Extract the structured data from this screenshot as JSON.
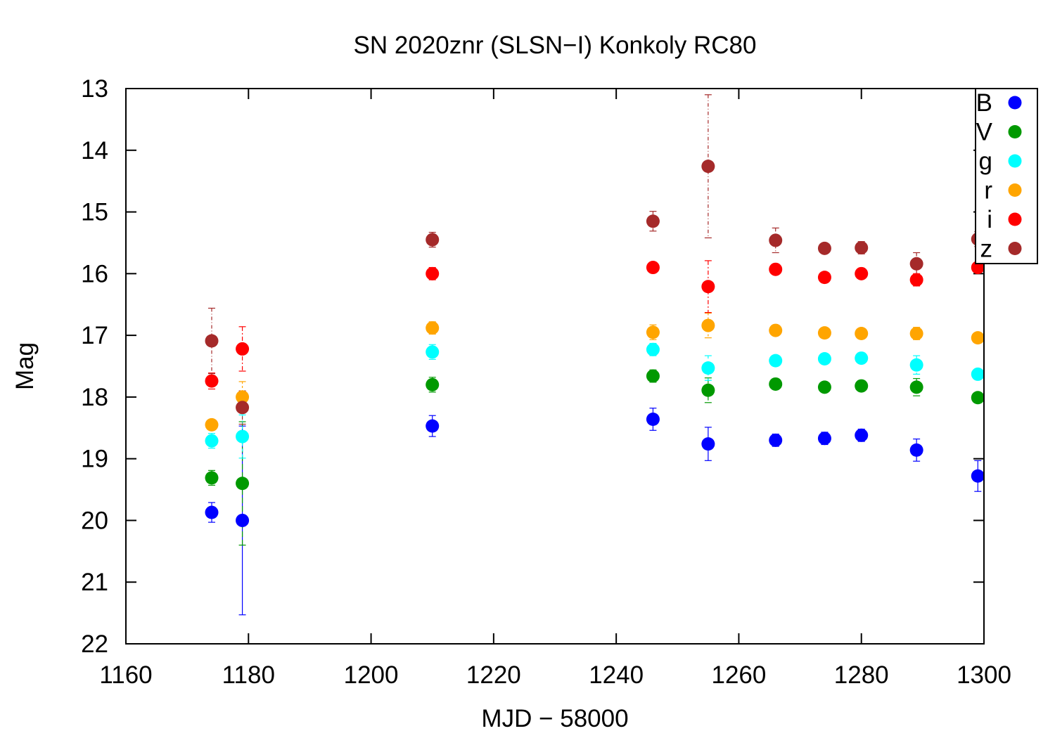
{
  "chart_data": {
    "type": "scatter",
    "title": "SN 2020znr (SLSN−I) Konkoly RC80",
    "xlabel": "MJD − 58000",
    "ylabel": "Mag",
    "xlim": [
      1160,
      1300
    ],
    "ylim": [
      22,
      13
    ],
    "y_inverted": true,
    "x_ticks": [
      1160,
      1180,
      1200,
      1220,
      1240,
      1260,
      1280,
      1300
    ],
    "y_ticks": [
      13,
      14,
      15,
      16,
      17,
      18,
      19,
      20,
      21,
      22
    ],
    "grid": false,
    "legend_position": "top-right",
    "series": [
      {
        "name": "B",
        "color": "#0000ff",
        "x": [
          1174,
          1179,
          1210,
          1246,
          1255,
          1266,
          1274,
          1280,
          1289,
          1299
        ],
        "y": [
          19.87,
          20.0,
          18.47,
          18.36,
          18.76,
          18.7,
          18.67,
          18.62,
          18.86,
          19.28
        ],
        "err": [
          0.16,
          1.53,
          0.17,
          0.18,
          0.27,
          0.1,
          0.1,
          0.1,
          0.18,
          0.25
        ]
      },
      {
        "name": "V",
        "color": "#009900",
        "x": [
          1174,
          1179,
          1210,
          1246,
          1255,
          1266,
          1274,
          1280,
          1289,
          1299
        ],
        "y": [
          19.31,
          19.4,
          17.8,
          17.66,
          17.89,
          17.79,
          17.84,
          17.82,
          17.84,
          18.01
        ],
        "err": [
          0.12,
          1.0,
          0.12,
          0.1,
          0.2,
          0.06,
          0.06,
          0.06,
          0.14,
          0.08
        ]
      },
      {
        "name": "g",
        "color": "#00ffff",
        "x": [
          1174,
          1179,
          1210,
          1246,
          1255,
          1266,
          1274,
          1280,
          1289,
          1299
        ],
        "y": [
          18.71,
          18.64,
          17.27,
          17.23,
          17.53,
          17.41,
          17.38,
          17.37,
          17.48,
          17.63
        ],
        "err": [
          0.12,
          0.35,
          0.12,
          0.1,
          0.2,
          0.05,
          0.05,
          0.05,
          0.15,
          0.08
        ]
      },
      {
        "name": "r",
        "color": "#ffa500",
        "x": [
          1174,
          1179,
          1210,
          1246,
          1255,
          1266,
          1274,
          1280,
          1289,
          1299
        ],
        "y": [
          18.45,
          18.0,
          16.88,
          16.95,
          16.84,
          16.92,
          16.96,
          16.97,
          16.97,
          17.04
        ],
        "err": [
          0.08,
          0.25,
          0.1,
          0.12,
          0.2,
          0.05,
          0.05,
          0.05,
          0.1,
          0.06
        ]
      },
      {
        "name": "i",
        "color": "#ff0000",
        "x": [
          1174,
          1179,
          1210,
          1246,
          1255,
          1266,
          1274,
          1280,
          1289,
          1299
        ],
        "y": [
          17.74,
          17.22,
          16.0,
          15.9,
          16.21,
          15.93,
          16.06,
          16.0,
          16.1,
          15.9
        ],
        "err": [
          0.13,
          0.36,
          0.1,
          0.08,
          0.42,
          0.06,
          0.06,
          0.06,
          0.1,
          0.06
        ]
      },
      {
        "name": "z",
        "color": "#a52a2a",
        "x": [
          1174,
          1179,
          1210,
          1246,
          1255,
          1266,
          1274,
          1280,
          1289,
          1299
        ],
        "y": [
          17.09,
          18.17,
          15.45,
          15.15,
          14.26,
          15.46,
          15.59,
          15.58,
          15.84,
          15.44
        ],
        "err": [
          0.53,
          0.27,
          0.12,
          0.16,
          1.16,
          0.2,
          0.08,
          0.1,
          0.18,
          0.12
        ]
      }
    ]
  }
}
